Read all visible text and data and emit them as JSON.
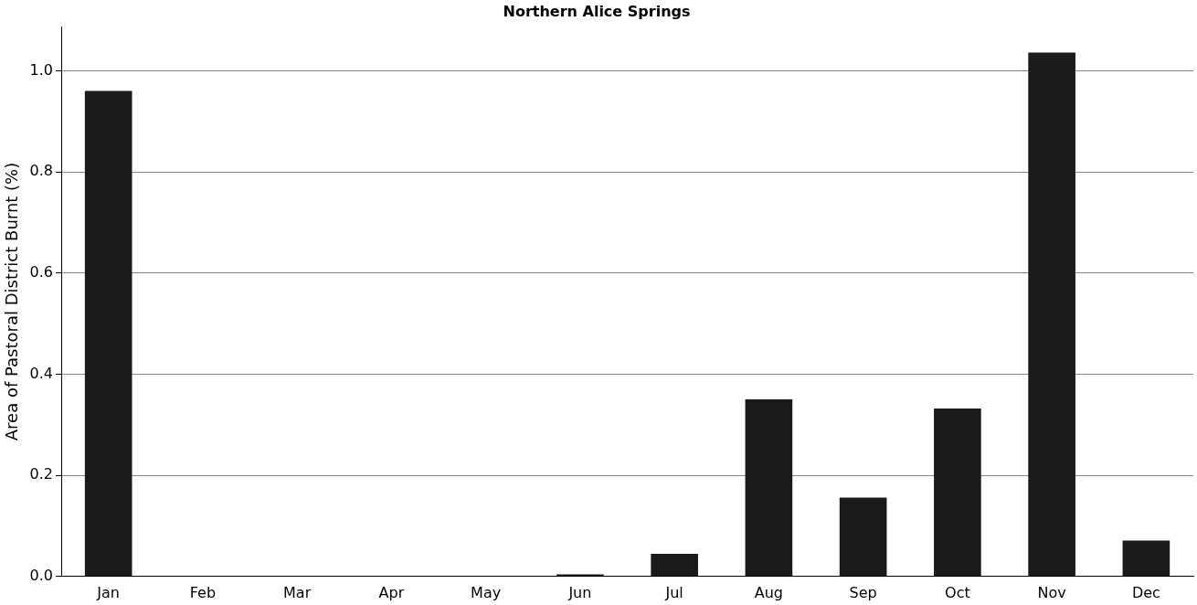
{
  "chart_data": {
    "type": "bar",
    "title": "Northern Alice Springs",
    "ylabel": "Area of Pastoral District Burnt (%)",
    "categories": [
      "Jan",
      "Feb",
      "Mar",
      "Apr",
      "May",
      "Jun",
      "Jul",
      "Aug",
      "Sep",
      "Oct",
      "Nov",
      "Dec"
    ],
    "values": [
      0.96,
      0,
      0,
      0,
      0,
      0.004,
      0.045,
      0.35,
      0.156,
      0.332,
      1.036,
      0.071
    ],
    "color": "#1a1a1a",
    "ylim": [
      0,
      1.087
    ],
    "yticks": [
      {
        "value": 0,
        "label": "0.0"
      },
      {
        "value": 0.2,
        "label": "0.2"
      },
      {
        "value": 0.4,
        "label": "0.4"
      },
      {
        "value": 0.6,
        "label": "0.6"
      },
      {
        "value": 0.8,
        "label": "0.8"
      },
      {
        "value": 1.0,
        "label": "1.0"
      }
    ],
    "grid": "y"
  }
}
